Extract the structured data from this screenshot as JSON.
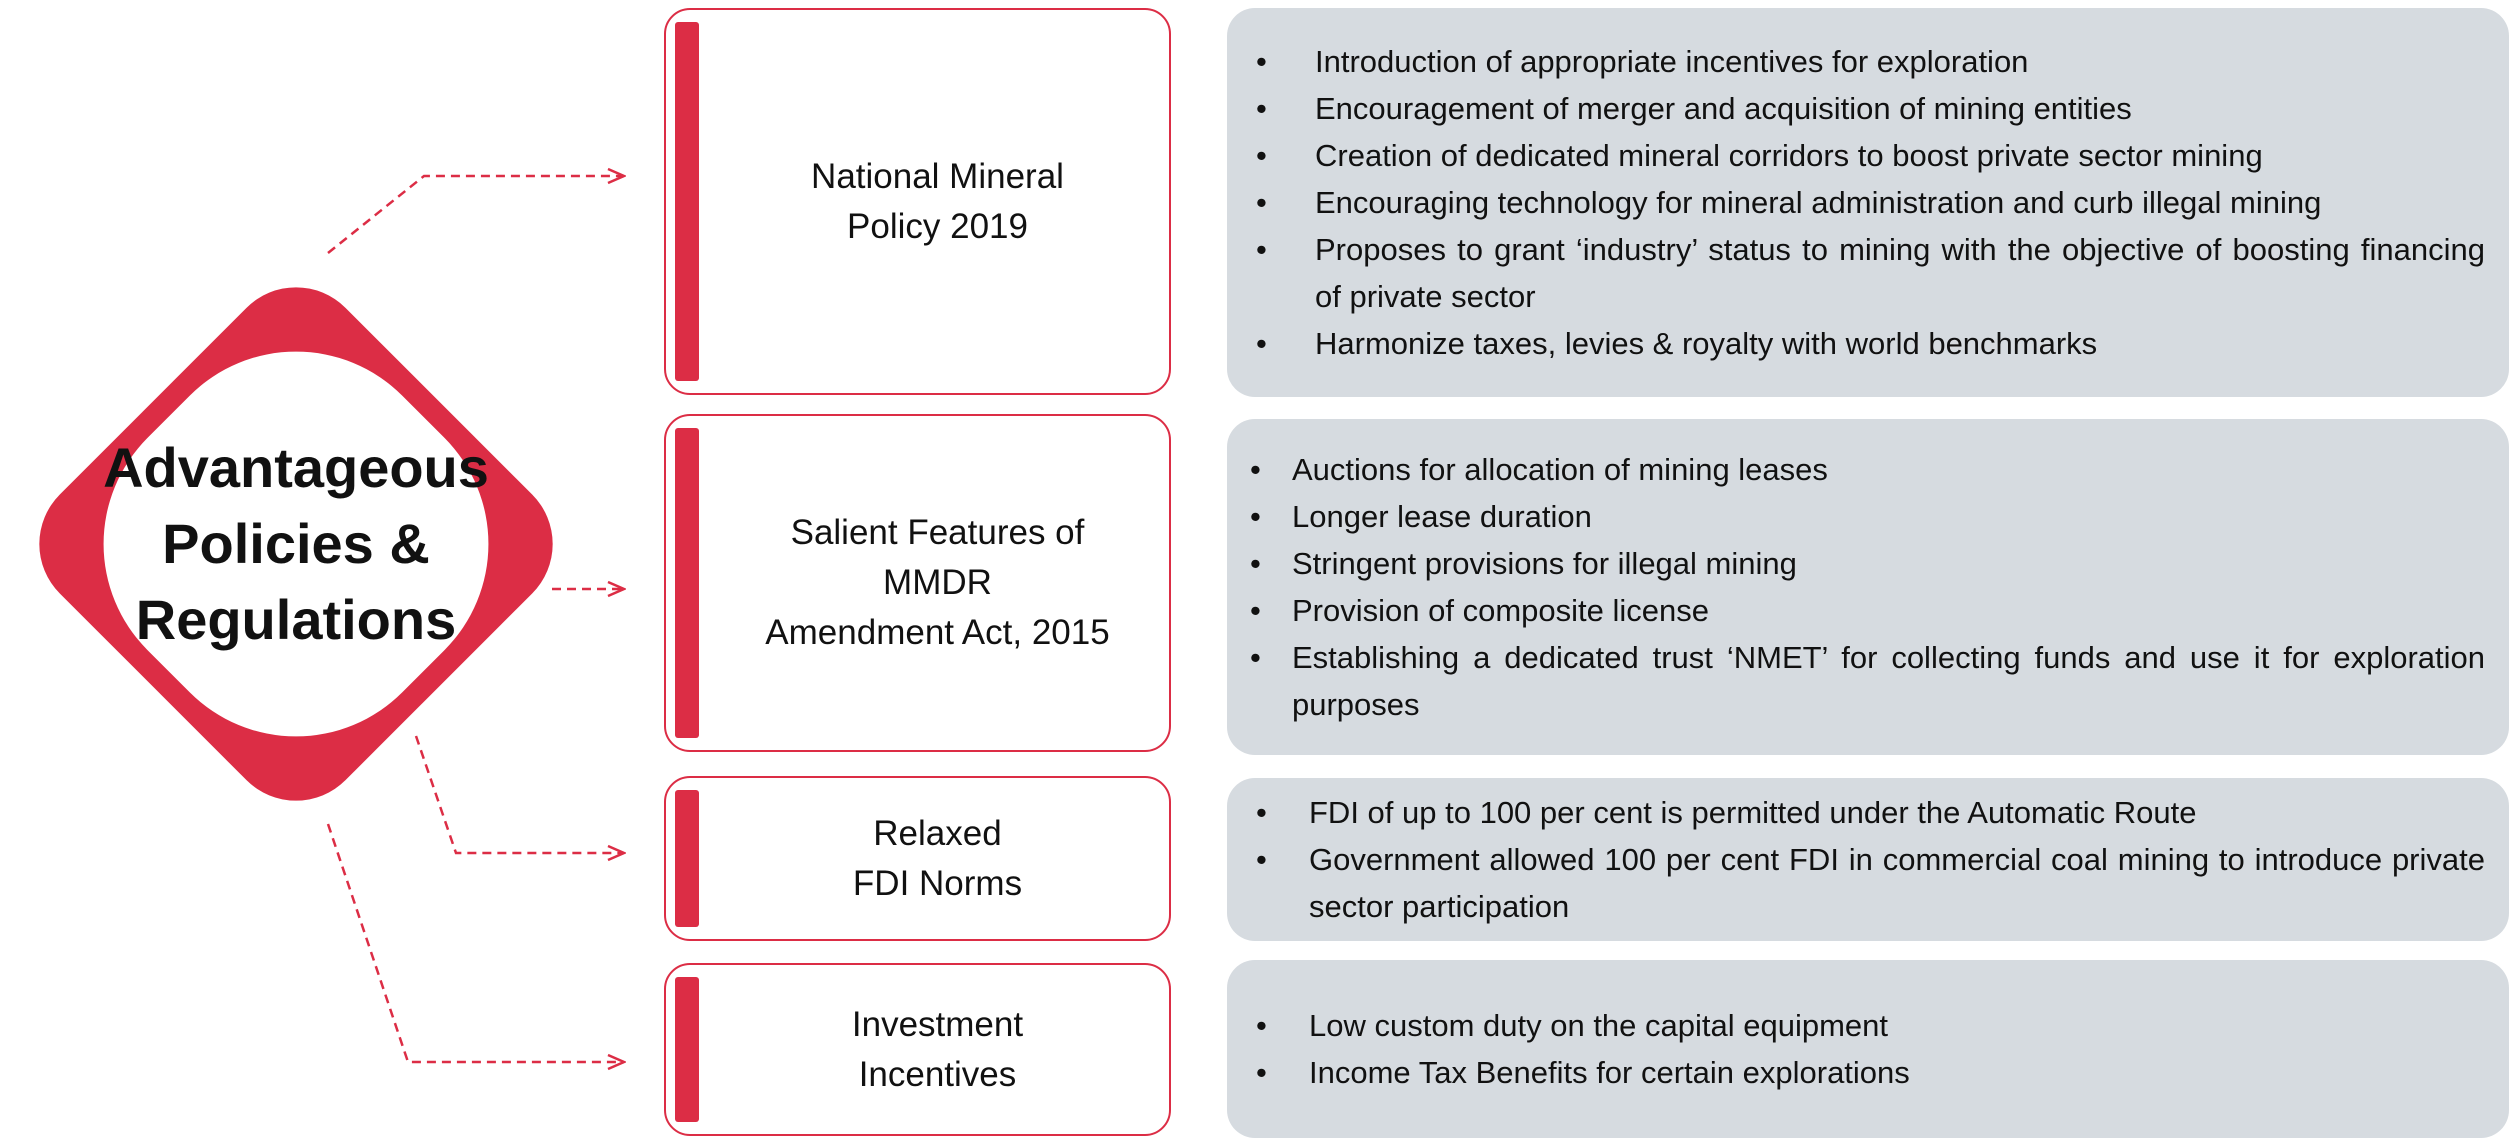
{
  "center": {
    "title_lines": [
      "Advantageous",
      "Policies &",
      "Regulations"
    ]
  },
  "policies": [
    {
      "title_lines": [
        "National Mineral",
        "Policy 2019"
      ],
      "bullets": [
        "Introduction of appropriate incentives for exploration",
        "Encouragement of merger and acquisition of mining entities",
        "Creation of dedicated mineral corridors to boost private sector mining",
        "Encouraging technology for mineral administration and curb illegal mining",
        "Proposes to grant ‘industry’ status to mining with the objective of boosting financing of private sector",
        "Harmonize taxes, levies & royalty with world benchmarks"
      ]
    },
    {
      "title_lines": [
        "Salient Features of",
        "MMDR",
        "Amendment Act, 2015"
      ],
      "bullets": [
        "Auctions for allocation of mining leases",
        "Longer lease duration",
        "Stringent provisions for illegal mining",
        "Provision of composite license",
        "Establishing a dedicated trust ‘NMET’ for collecting funds and use it for exploration purposes"
      ]
    },
    {
      "title_lines": [
        "Relaxed",
        "FDI Norms"
      ],
      "bullets": [
        "FDI of up to 100 per cent is permitted under the Automatic Route",
        "Government allowed 100 per cent FDI in commercial coal mining to introduce private sector participation"
      ]
    },
    {
      "title_lines": [
        "Investment",
        "Incentives"
      ],
      "bullets": [
        "Low custom duty on the capital equipment",
        "Income Tax Benefits for certain explorations"
      ]
    }
  ]
}
